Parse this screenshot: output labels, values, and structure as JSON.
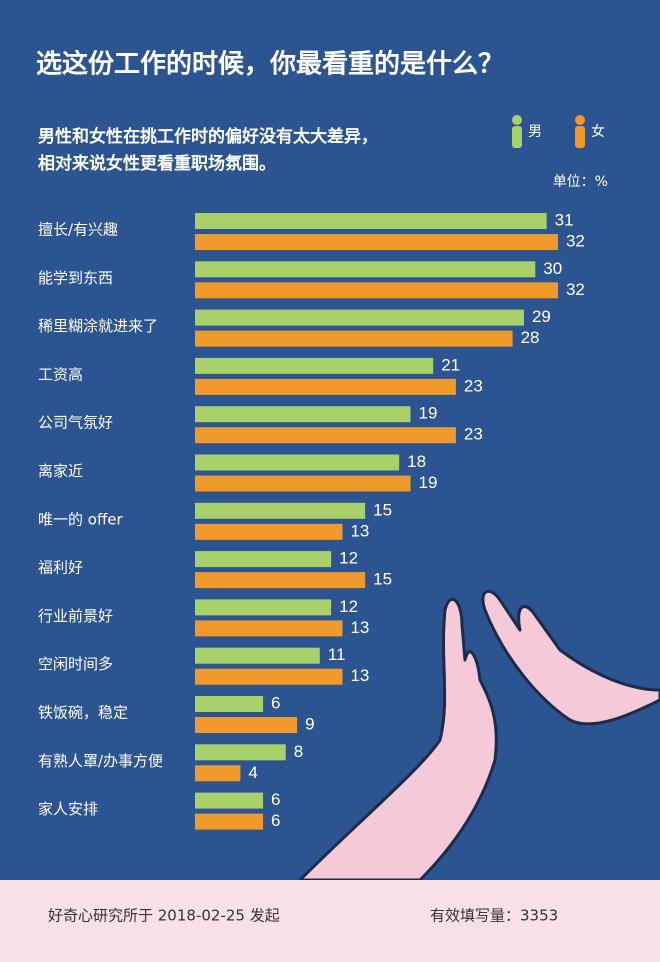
{
  "chart_data": {
    "type": "bar",
    "title": "选这份工作的时候，你最看重的是什么？",
    "subtitle": [
      "男性和女性在挑工作时的偏好没有太大差异，",
      "相对来说女性更看重职场氛围。"
    ],
    "unit": "单位：%",
    "categories": [
      "擅长/有兴趣",
      "能学到东西",
      "稀里糊涂就进来了",
      "工资高",
      "公司气氛好",
      "离家近",
      "唯一的 offer",
      "福利好",
      "行业前景好",
      "空闲时间多",
      "铁饭碗，稳定",
      "有熟人罩/办事方便",
      "家人安排"
    ],
    "series": [
      {
        "name": "男",
        "color": "#a9d16b",
        "values": [
          31,
          30,
          29,
          21,
          19,
          18,
          15,
          12,
          12,
          11,
          6,
          8,
          6
        ]
      },
      {
        "name": "女",
        "color": "#f19a2c",
        "values": [
          32,
          32,
          28,
          23,
          23,
          19,
          13,
          15,
          13,
          13,
          9,
          4,
          6
        ]
      }
    ],
    "xlim": [
      0,
      35
    ]
  },
  "footer": {
    "source": "好奇心研究所于 2018-02-25 发起",
    "sample": "有效填写量：3353"
  }
}
